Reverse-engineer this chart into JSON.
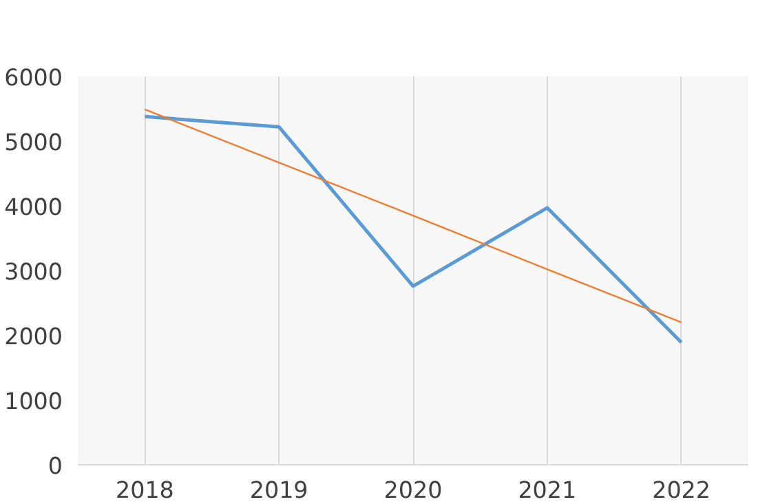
{
  "chart_data": {
    "type": "line",
    "categories": [
      "2018",
      "2019",
      "2020",
      "2021",
      "2022"
    ],
    "series": [
      {
        "color": "#5b9bd5",
        "values": [
          5380,
          5220,
          2760,
          3970,
          1890
        ]
      },
      {
        "type": "line",
        "color": "#ed7d31",
        "values": [
          5490,
          4670,
          3850,
          3020,
          2200
        ],
        "line_style": "solid"
      }
    ],
    "ylim": [
      0,
      6000
    ],
    "yticks": [
      0,
      1000,
      2000,
      3000,
      4000,
      5000,
      6000
    ],
    "grid": "x"
  }
}
